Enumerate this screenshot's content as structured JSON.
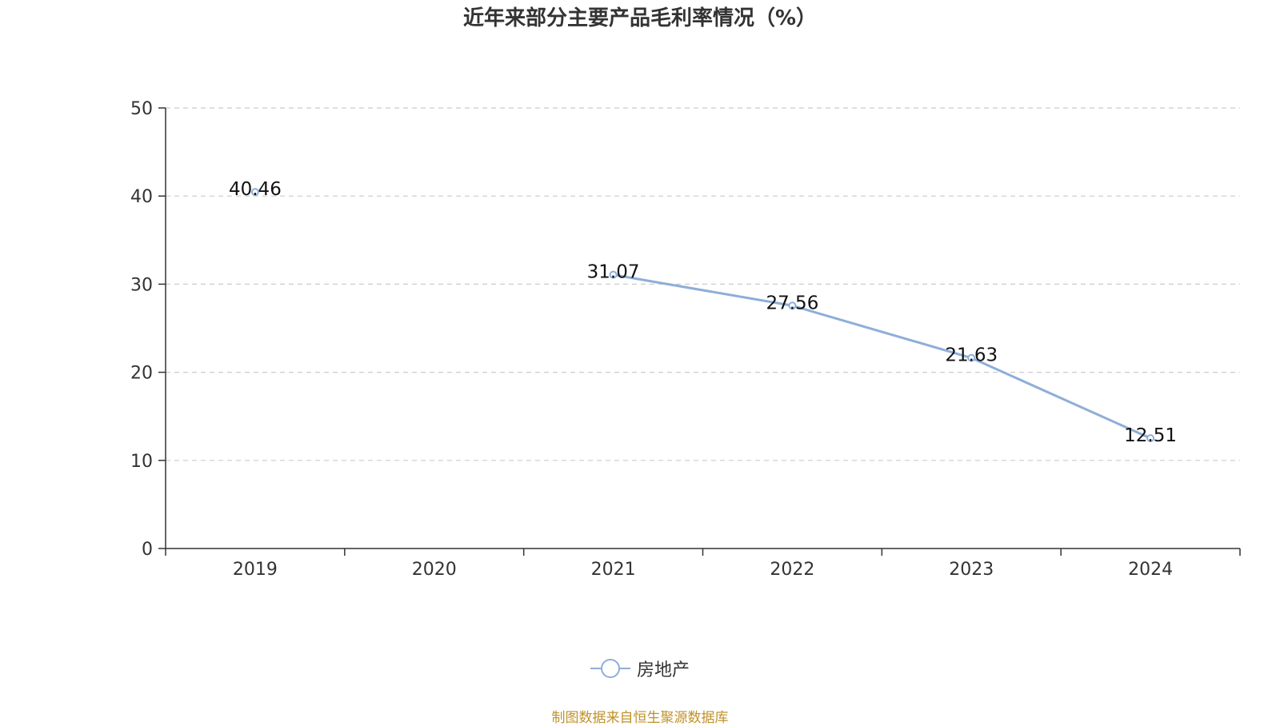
{
  "title": "近年来部分主要产品毛利率情况（%）",
  "footer": "制图数据来自恒生聚源数据库",
  "colors": {
    "series": "#8eaed8",
    "axis": "#333333",
    "grid": "#cccccc",
    "footer": "#c0922a",
    "text": "#333333"
  },
  "chart_data": {
    "type": "line",
    "title": "近年来部分主要产品毛利率情况（%）",
    "xlabel": "",
    "ylabel": "",
    "categories": [
      "2019",
      "2020",
      "2021",
      "2022",
      "2023",
      "2024"
    ],
    "series": [
      {
        "name": "房地产",
        "values": [
          40.46,
          null,
          31.07,
          27.56,
          21.63,
          12.51
        ]
      }
    ],
    "ylim": [
      0,
      50
    ],
    "yticks": [
      0,
      10,
      20,
      30,
      40,
      50
    ],
    "grid": "horizontal-dashed",
    "legend": "bottom-center"
  }
}
